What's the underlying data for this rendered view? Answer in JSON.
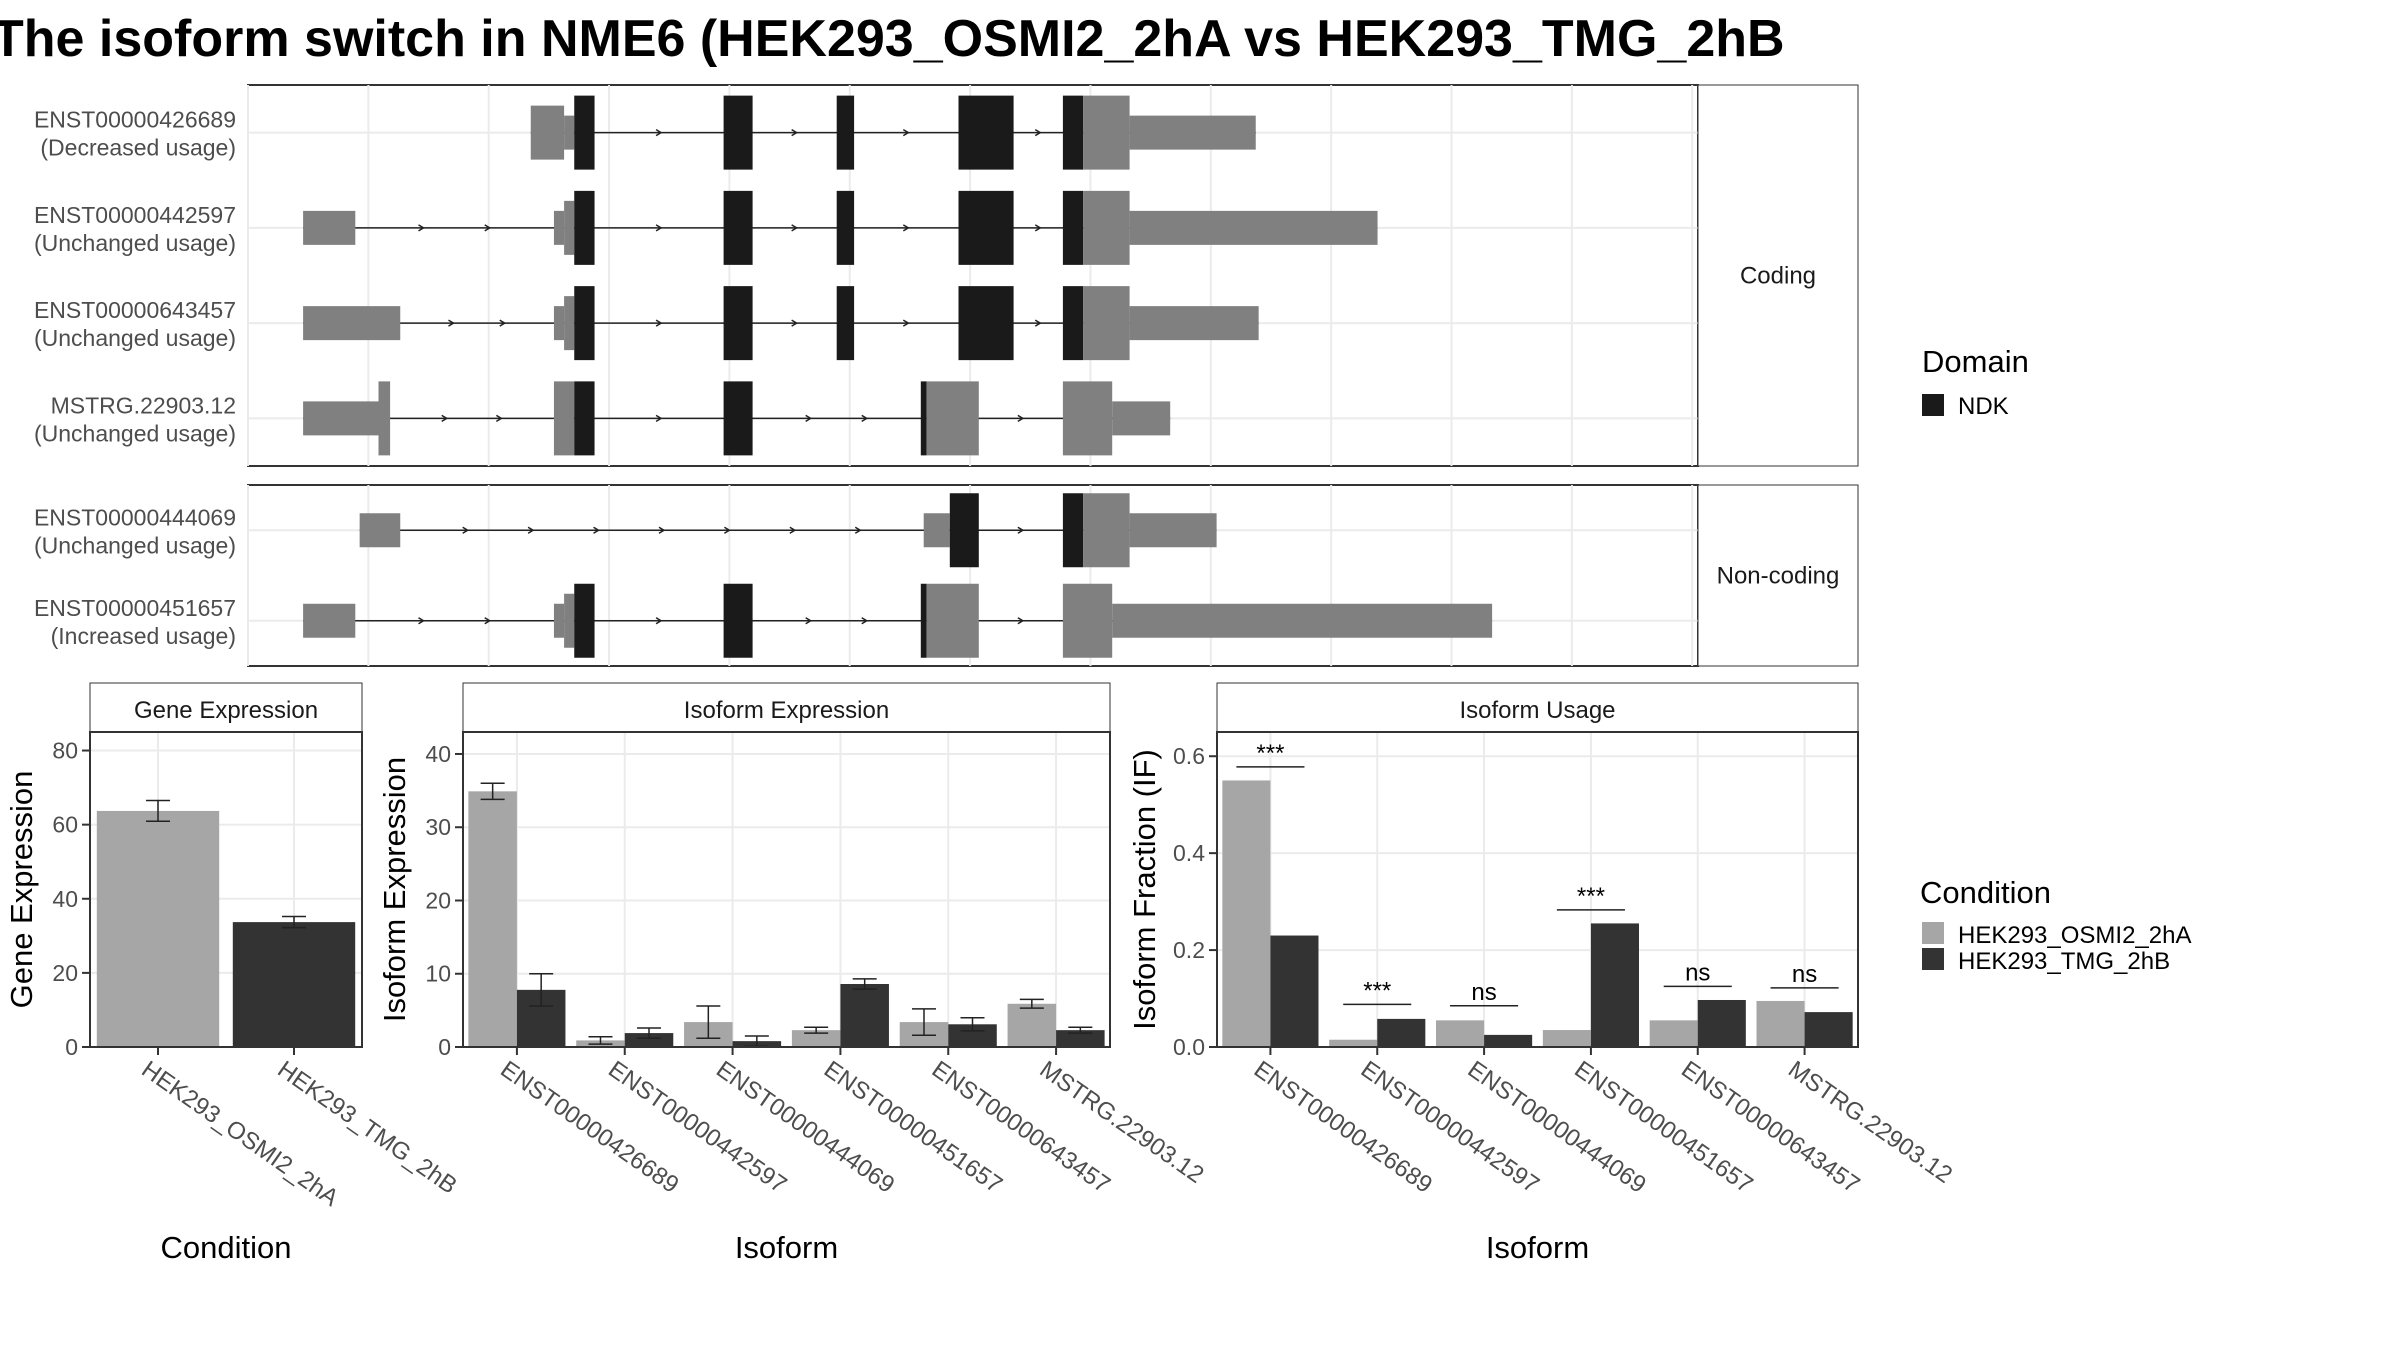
{
  "title": "The isoform switch in NME6 (HEK293_OSMI2_2hA vs HEK293_TMG_2hB",
  "colors": {
    "exon": "#808080",
    "domain": "#1a1a1a",
    "cond_a": "#a6a6a6",
    "cond_b": "#333333",
    "strip": "#ffffff",
    "grid": "#ebebeb"
  },
  "structure": {
    "x_range": [
      0,
      100
    ],
    "groups": [
      {
        "label": "Coding",
        "isoforms": [
          {
            "id": "ENST00000426689",
            "usage": "(Decreased usage)",
            "segments": [
              {
                "start": 19.5,
                "end": 21.8,
                "kind": "utr"
              },
              {
                "start": 21.8,
                "end": 22.5,
                "kind": "utr_step"
              },
              {
                "start": 22.5,
                "end": 23.9,
                "kind": "domain"
              },
              {
                "start": 32.8,
                "end": 34.8,
                "kind": "domain"
              },
              {
                "start": 40.6,
                "end": 41.8,
                "kind": "domain"
              },
              {
                "start": 49.0,
                "end": 52.8,
                "kind": "domain"
              },
              {
                "start": 56.2,
                "end": 57.6,
                "kind": "domain"
              },
              {
                "start": 57.6,
                "end": 60.8,
                "kind": "cds"
              },
              {
                "start": 60.8,
                "end": 69.5,
                "kind": "utr_wide"
              }
            ]
          },
          {
            "id": "ENST00000442597",
            "usage": "(Unchanged usage)",
            "segments": [
              {
                "start": 3.8,
                "end": 7.4,
                "kind": "utr_wide"
              },
              {
                "start": 21.1,
                "end": 21.8,
                "kind": "utr_step"
              },
              {
                "start": 21.8,
                "end": 22.5,
                "kind": "utr"
              },
              {
                "start": 22.5,
                "end": 23.9,
                "kind": "domain"
              },
              {
                "start": 32.8,
                "end": 34.8,
                "kind": "domain"
              },
              {
                "start": 40.6,
                "end": 41.8,
                "kind": "domain"
              },
              {
                "start": 49.0,
                "end": 52.8,
                "kind": "domain"
              },
              {
                "start": 56.2,
                "end": 57.6,
                "kind": "domain"
              },
              {
                "start": 57.6,
                "end": 60.8,
                "kind": "cds"
              },
              {
                "start": 60.8,
                "end": 77.9,
                "kind": "utr_wide"
              }
            ]
          },
          {
            "id": "ENST00000643457",
            "usage": "(Unchanged usage)",
            "segments": [
              {
                "start": 3.8,
                "end": 10.5,
                "kind": "utr_wide"
              },
              {
                "start": 21.1,
                "end": 21.8,
                "kind": "utr_step"
              },
              {
                "start": 21.8,
                "end": 22.5,
                "kind": "utr"
              },
              {
                "start": 22.5,
                "end": 23.9,
                "kind": "domain"
              },
              {
                "start": 32.8,
                "end": 34.8,
                "kind": "domain"
              },
              {
                "start": 40.6,
                "end": 41.8,
                "kind": "domain"
              },
              {
                "start": 49.0,
                "end": 52.8,
                "kind": "domain"
              },
              {
                "start": 56.2,
                "end": 57.6,
                "kind": "domain"
              },
              {
                "start": 57.6,
                "end": 60.8,
                "kind": "cds"
              },
              {
                "start": 60.8,
                "end": 69.7,
                "kind": "utr_wide"
              }
            ]
          },
          {
            "id": "MSTRG.22903.12",
            "usage": "(Unchanged usage)",
            "segments": [
              {
                "start": 3.8,
                "end": 9.0,
                "kind": "utr_wide"
              },
              {
                "start": 9.0,
                "end": 9.8,
                "kind": "cds"
              },
              {
                "start": 21.1,
                "end": 22.5,
                "kind": "cds"
              },
              {
                "start": 22.5,
                "end": 23.9,
                "kind": "domain"
              },
              {
                "start": 32.8,
                "end": 34.8,
                "kind": "domain"
              },
              {
                "start": 46.4,
                "end": 46.8,
                "kind": "domain"
              },
              {
                "start": 46.8,
                "end": 50.4,
                "kind": "cds"
              },
              {
                "start": 56.2,
                "end": 59.6,
                "kind": "cds"
              },
              {
                "start": 59.6,
                "end": 63.6,
                "kind": "utr_wide"
              }
            ]
          }
        ]
      },
      {
        "label": "Non-coding",
        "isoforms": [
          {
            "id": "ENST00000444069",
            "usage": "(Unchanged usage)",
            "segments": [
              {
                "start": 7.7,
                "end": 10.5,
                "kind": "utr_wide"
              },
              {
                "start": 46.6,
                "end": 48.4,
                "kind": "utr_wide"
              },
              {
                "start": 48.4,
                "end": 50.4,
                "kind": "domain"
              },
              {
                "start": 56.2,
                "end": 57.6,
                "kind": "domain"
              },
              {
                "start": 57.6,
                "end": 60.8,
                "kind": "cds"
              },
              {
                "start": 60.8,
                "end": 66.8,
                "kind": "utr_wide"
              }
            ]
          },
          {
            "id": "ENST00000451657",
            "usage": "(Increased usage)",
            "segments": [
              {
                "start": 3.8,
                "end": 7.4,
                "kind": "utr_wide"
              },
              {
                "start": 21.1,
                "end": 21.8,
                "kind": "utr_step"
              },
              {
                "start": 21.8,
                "end": 22.5,
                "kind": "utr"
              },
              {
                "start": 22.5,
                "end": 23.9,
                "kind": "domain"
              },
              {
                "start": 32.8,
                "end": 34.8,
                "kind": "domain"
              },
              {
                "start": 46.4,
                "end": 46.8,
                "kind": "domain"
              },
              {
                "start": 46.8,
                "end": 50.4,
                "kind": "cds"
              },
              {
                "start": 56.2,
                "end": 59.6,
                "kind": "cds"
              },
              {
                "start": 59.6,
                "end": 85.8,
                "kind": "utr_wide"
              }
            ]
          }
        ]
      }
    ],
    "domain_legend": {
      "title": "Domain",
      "items": [
        "NDK"
      ]
    }
  },
  "chart_data": [
    {
      "type": "bar",
      "title": "Gene Expression",
      "xlabel": "Condition",
      "ylabel": "Gene Expression",
      "ylim": [
        0,
        85
      ],
      "yticks": [
        0,
        20,
        40,
        60,
        80
      ],
      "categories": [
        "HEK293_OSMI2_2hA",
        "HEK293_TMG_2hB"
      ],
      "values": [
        63.7,
        33.7
      ],
      "errors": [
        2.8,
        1.5
      ],
      "grid": true
    },
    {
      "type": "bar",
      "title": "Isoform Expression",
      "xlabel": "Isoform",
      "ylabel": "Isoform Expression",
      "ylim": [
        0,
        43
      ],
      "yticks": [
        0,
        10,
        20,
        30,
        40
      ],
      "categories": [
        "ENST00000426689",
        "ENST00000442597",
        "ENST00000444069",
        "ENST00000451657",
        "ENST00000643457",
        "MSTRG.22903.12"
      ],
      "series": [
        {
          "name": "HEK293_OSMI2_2hA",
          "values": [
            34.9,
            0.9,
            3.4,
            2.3,
            3.4,
            5.9
          ],
          "errors": [
            1.1,
            0.5,
            2.2,
            0.4,
            1.8,
            0.6
          ]
        },
        {
          "name": "HEK293_TMG_2hB",
          "values": [
            7.8,
            1.9,
            0.8,
            8.6,
            3.1,
            2.3
          ],
          "errors": [
            2.2,
            0.7,
            0.7,
            0.7,
            0.9,
            0.4
          ]
        }
      ],
      "grid": true
    },
    {
      "type": "bar",
      "title": "Isoform Usage",
      "xlabel": "Isoform",
      "ylabel": "Isoform Fraction (IF)",
      "ylim": [
        0,
        0.65
      ],
      "yticks": [
        0.0,
        0.2,
        0.4,
        0.6
      ],
      "yticklabels": [
        "0.0",
        "0.2",
        "0.4",
        "0.6"
      ],
      "categories": [
        "ENST00000426689",
        "ENST00000442597",
        "ENST00000444069",
        "ENST00000451657",
        "ENST00000643457",
        "MSTRG.22903.12"
      ],
      "series": [
        {
          "name": "HEK293_OSMI2_2hA",
          "values": [
            0.55,
            0.015,
            0.055,
            0.035,
            0.055,
            0.095
          ]
        },
        {
          "name": "HEK293_TMG_2hB",
          "values": [
            0.23,
            0.058,
            0.025,
            0.255,
            0.097,
            0.072
          ]
        }
      ],
      "significance": [
        {
          "label": "***",
          "y": 0.578
        },
        {
          "label": "***",
          "y": 0.088
        },
        {
          "label": "ns",
          "y": 0.085
        },
        {
          "label": "***",
          "y": 0.283
        },
        {
          "label": "ns",
          "y": 0.125
        },
        {
          "label": "ns",
          "y": 0.122
        }
      ],
      "grid": true
    }
  ],
  "condition_legend": {
    "title": "Condition",
    "items": [
      "HEK293_OSMI2_2hA",
      "HEK293_TMG_2hB"
    ]
  }
}
